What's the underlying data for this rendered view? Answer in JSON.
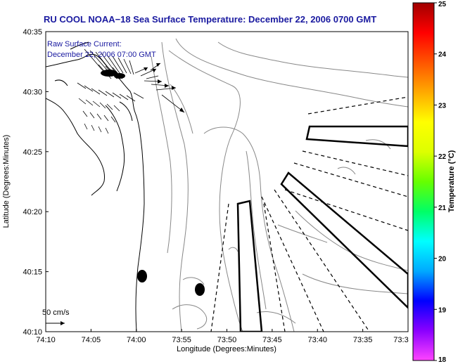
{
  "title": "RU COOL  NOAA−18  Sea Surface Temperature:  December 22, 2006 0700 GMT",
  "annotation": {
    "line1": "Raw Surface Current:",
    "line2": "December 22, 2006 07:00 GMT"
  },
  "scale_label": "50 cm/s",
  "axes": {
    "xlabel": "Longitude (Degrees:Minutes)",
    "ylabel": "Latitude (Degrees:Minutes)",
    "x_ticks": [
      "74:10",
      "74:05",
      "74:00",
      "73:55",
      "73:50",
      "73:45",
      "73:40",
      "73:35",
      "73:3"
    ],
    "y_ticks": [
      "40:35",
      "40:30",
      "40:25",
      "40:20",
      "40:15",
      "40:10"
    ]
  },
  "colorbar": {
    "label": "Temperature (°C)",
    "ticks": [
      "25",
      "24",
      "23",
      "22",
      "21",
      "20",
      "19",
      "18"
    ],
    "colors": [
      "#ff44ff",
      "#8a00ff",
      "#0000ff",
      "#00aaff",
      "#00ffff",
      "#00ff66",
      "#66ff00",
      "#ddff00",
      "#ffff00",
      "#ffaa00",
      "#ff5500",
      "#ff0000",
      "#a00000"
    ]
  },
  "colors": {
    "title": "#1a1aa0",
    "annotation": "#1a1aa0",
    "contour": "#888888"
  }
}
